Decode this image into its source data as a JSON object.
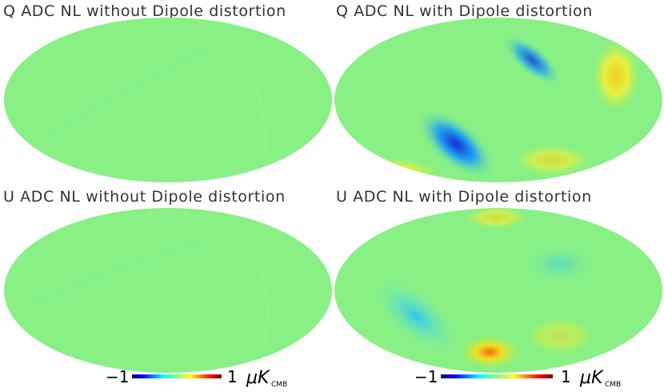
{
  "panels": [
    {
      "title": "Q ADC NL without Dipole distortion"
    },
    {
      "title": "Q ADC NL with Dipole distortion"
    },
    {
      "title": "U ADC NL without Dipole distortion"
    },
    {
      "title": "U ADC NL with Dipole distortion"
    }
  ],
  "colorbars": [
    {
      "min": "−1",
      "max": "1",
      "unit": "μK",
      "unit_sub": "CMB"
    },
    {
      "min": "−1",
      "max": "1",
      "unit": "μK",
      "unit_sub": "CMB"
    }
  ]
}
